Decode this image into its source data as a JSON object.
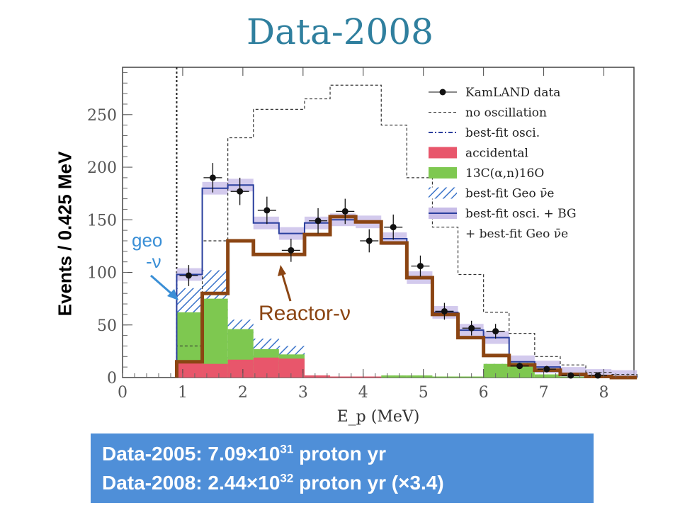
{
  "slide": {
    "title": "Data-2008",
    "annotations": {
      "geo_label": "geo",
      "geo_nu": "-ν",
      "reactor": "Reactor-ν"
    },
    "info": {
      "line1_prefix": "Data-2005:  7.09×10",
      "line1_exp": "31",
      "line1_suffix": " proton yr",
      "line2_prefix": "Data-2008:  2.44×10",
      "line2_exp": "32",
      "line2_suffix": " proton yr (×3.4)"
    },
    "colors": {
      "title": "#2f7f9e",
      "accidental": "#e8566b",
      "carbon": "#7ec850",
      "geo_hatch": "#3a73c9",
      "bestfit_bg": "#2a3f9e",
      "band": "#c8bde8",
      "reactor": "#8b4513",
      "info_box": "#4f8fd8"
    }
  },
  "chart_data": {
    "type": "histogram",
    "xlabel": "E_p (MeV)",
    "ylabel": "Events / 0.425 MeV",
    "xlim": [
      0,
      8.5
    ],
    "ylim": [
      0,
      295
    ],
    "xticks": [
      0,
      1,
      2,
      3,
      4,
      5,
      6,
      7,
      8
    ],
    "yticks": [
      0,
      50,
      100,
      150,
      200,
      250
    ],
    "threshold": 0.9,
    "bin_edges": [
      0.9,
      1.325,
      1.75,
      2.175,
      2.6,
      3.025,
      3.45,
      3.875,
      4.3,
      4.725,
      5.15,
      5.575,
      6.0,
      6.425,
      6.85,
      7.275,
      7.7,
      8.125,
      8.55
    ],
    "legend": [
      {
        "label": "KamLAND data",
        "style": "points"
      },
      {
        "label": "no oscillation",
        "style": "dashed"
      },
      {
        "label": "best-fit osci.",
        "style": "dashdot"
      },
      {
        "label": "accidental",
        "style": "fill-red"
      },
      {
        "label": "13C(α,n)16O",
        "style": "fill-green"
      },
      {
        "label": "best-fit Geo ν̄e",
        "style": "hatch"
      },
      {
        "label": "best-fit osci. + BG",
        "style": "line-blue"
      },
      {
        "label": "+ best-fit Geo ν̄e",
        "style": "none"
      }
    ],
    "series": [
      {
        "name": "KamLAND data",
        "type": "points",
        "x": [
          1.1,
          1.5,
          1.95,
          2.4,
          2.8,
          3.25,
          3.7,
          4.1,
          4.5,
          4.95,
          5.35,
          5.8,
          6.2,
          6.6,
          7.05,
          7.45,
          7.9
        ],
        "y": [
          97,
          190,
          177,
          159,
          121,
          149,
          158,
          130,
          143,
          106,
          63,
          47,
          44,
          11,
          8,
          2,
          2
        ],
        "err": [
          10,
          14,
          13,
          13,
          11,
          12,
          12,
          11,
          12,
          10,
          8,
          7,
          7,
          3,
          3,
          2,
          2
        ]
      },
      {
        "name": "no oscillation",
        "type": "step",
        "values": [
          30,
          130,
          228,
          255,
          255,
          265,
          278,
          278,
          240,
          190,
          143,
          98,
          62,
          42,
          20,
          12,
          5,
          3
        ]
      },
      {
        "name": "accidental",
        "type": "fill",
        "values": [
          15,
          13,
          17,
          19,
          18,
          2,
          1,
          1,
          0,
          0,
          0,
          0,
          0,
          0,
          0,
          0,
          0,
          0
        ]
      },
      {
        "name": "13C(α,n)16O",
        "type": "fill",
        "values": [
          62,
          75,
          46,
          27,
          22,
          2,
          1,
          1,
          2,
          2,
          1,
          1,
          13,
          14,
          3,
          1,
          0,
          0
        ]
      },
      {
        "name": "best-fit Geo ν̄e",
        "type": "fill",
        "values": [
          85,
          102,
          55,
          37,
          30,
          2,
          1,
          1,
          2,
          2,
          1,
          1,
          13,
          14,
          3,
          1,
          0,
          0
        ]
      },
      {
        "name": "best-fit osci. + BG",
        "type": "step",
        "values": [
          98,
          180,
          183,
          147,
          137,
          147,
          150,
          148,
          132,
          95,
          62,
          45,
          38,
          15,
          10,
          4,
          2,
          1
        ],
        "band": 6
      },
      {
        "name": "Reactor",
        "type": "step",
        "values": [
          15,
          80,
          130,
          117,
          117,
          136,
          153,
          148,
          128,
          95,
          60,
          38,
          21,
          12,
          7,
          3,
          1,
          0
        ]
      }
    ]
  }
}
